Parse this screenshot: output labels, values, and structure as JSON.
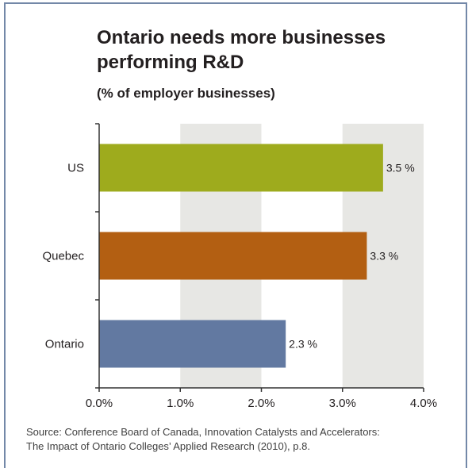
{
  "chart_data": {
    "type": "bar",
    "orientation": "horizontal",
    "title": "Ontario needs more businesses performing R&D",
    "subtitle": "(% of employer businesses)",
    "categories": [
      "US",
      "Quebec",
      "Ontario"
    ],
    "values": [
      3.5,
      3.3,
      2.3
    ],
    "value_labels": [
      "3.5 %",
      "3.3 %",
      "2.3 %"
    ],
    "bar_colors": [
      "#9eab1d",
      "#b35f12",
      "#6279a1"
    ],
    "xlim": [
      0,
      4
    ],
    "xticks": [
      0,
      1,
      2,
      3,
      4
    ],
    "xtick_labels": [
      "0.0%",
      "1.0%",
      "2.0%",
      "3.0%",
      "4.0%"
    ],
    "xlabel": "",
    "ylabel": "",
    "grid": "alternating vertical bands",
    "band_color": "#e7e7e4",
    "legend": "none"
  },
  "source_lines": [
    "Source: Conference Board of Canada, Innovation Catalysts and Accelerators:",
    "The Impact of Ontario Colleges’ Applied Research (2010), p.8."
  ]
}
